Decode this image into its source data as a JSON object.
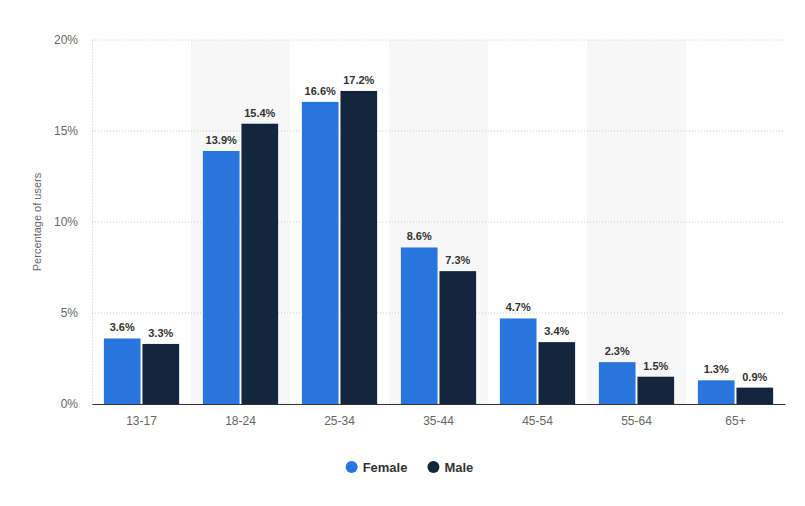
{
  "chart_data": {
    "type": "bar",
    "y_label": "Percentage of users",
    "categories": [
      "13-17",
      "18-24",
      "25-34",
      "35-44",
      "45-54",
      "55-64",
      "65+"
    ],
    "series": [
      {
        "name": "Female",
        "color": "#2876dd",
        "values": [
          3.6,
          13.9,
          16.6,
          8.6,
          4.7,
          2.3,
          1.3
        ],
        "value_labels": [
          "3.6%",
          "13.9%",
          "16.6%",
          "8.6%",
          "4.7%",
          "2.3%",
          "1.3%"
        ]
      },
      {
        "name": "Male",
        "color": "#13263d",
        "values": [
          3.3,
          15.4,
          17.2,
          7.3,
          3.4,
          1.5,
          0.9
        ],
        "value_labels": [
          "3.3%",
          "15.4%",
          "17.2%",
          "7.3%",
          "3.4%",
          "1.5%",
          "0.9%"
        ]
      }
    ],
    "ylim": [
      0,
      20
    ],
    "yticks": [
      {
        "value": 0,
        "label": "0%"
      },
      {
        "value": 5,
        "label": "5%"
      },
      {
        "value": 10,
        "label": "10%"
      },
      {
        "value": 15,
        "label": "15%"
      },
      {
        "value": 20,
        "label": "20%"
      }
    ],
    "grid": true,
    "data_labels": true,
    "legend": "bottom"
  }
}
